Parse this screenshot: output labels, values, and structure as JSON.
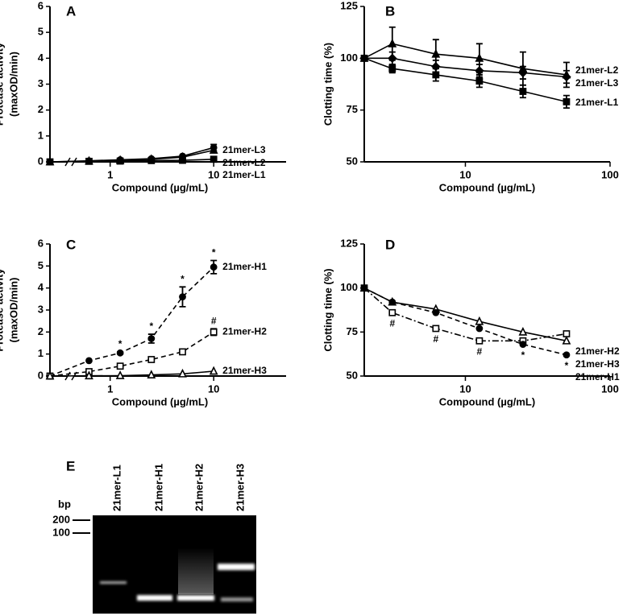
{
  "chart_data": [
    {
      "type": "line",
      "panel": "A",
      "ylabel": [
        "Protease activity",
        "(maxOD/min)"
      ],
      "xlabel": "Compound (µg/mL)",
      "x": [
        0,
        0.625,
        1.25,
        2.5,
        5,
        10
      ],
      "xlog": true,
      "axis_break": true,
      "xlim": [
        0.5,
        50
      ],
      "xticks": [
        1,
        10
      ],
      "ylim": [
        0,
        6
      ],
      "yticks": [
        0,
        1,
        2,
        3,
        4,
        5,
        6
      ],
      "annotation_position": "above",
      "series": [
        {
          "name": "21mer-L3",
          "color": "#000000",
          "marker": "circle",
          "filled": true,
          "dash": "solid",
          "values": [
            0,
            0.04,
            0.08,
            0.12,
            0.22,
            0.55
          ],
          "errors": [
            null,
            null,
            null,
            null,
            0.03,
            0.12
          ]
        },
        {
          "name": "21mer-L2",
          "color": "#000000",
          "marker": "triangle",
          "filled": true,
          "dash": "solid",
          "values": [
            0,
            0.03,
            0.06,
            0.1,
            0.18,
            0.45
          ],
          "errors": [
            null,
            null,
            null,
            null,
            0.03,
            0.1
          ]
        },
        {
          "name": "21mer-L1",
          "color": "#000000",
          "marker": "square",
          "filled": true,
          "dash": "solid",
          "values": [
            0,
            0.02,
            0.03,
            0.05,
            0.06,
            0.1
          ],
          "errors": [
            null,
            null,
            null,
            null,
            null,
            0.03
          ]
        }
      ]
    },
    {
      "type": "line",
      "panel": "B",
      "ylabel": [
        "Clotting time (%)"
      ],
      "xlabel": "Compound (µg/mL)",
      "x": [
        0,
        3.125,
        6.25,
        12.5,
        25,
        50
      ],
      "xlog": true,
      "axis_break": false,
      "xlim": [
        2,
        100
      ],
      "xticks": [
        10,
        100
      ],
      "ylim": [
        50,
        125
      ],
      "yticks": [
        50,
        75,
        100,
        125
      ],
      "annotation_position": "above",
      "series": [
        {
          "name": "21mer-L2",
          "color": "#000000",
          "marker": "triangle",
          "filled": true,
          "dash": "solid",
          "values": [
            100,
            107,
            102,
            100,
            95,
            92
          ],
          "errors": [
            null,
            8,
            7,
            7,
            8,
            6
          ]
        },
        {
          "name": "21mer-L3",
          "color": "#000000",
          "marker": "diamond",
          "filled": true,
          "dash": "solid",
          "values": [
            100,
            100,
            96,
            94,
            93,
            91
          ],
          "errors": [
            null,
            3,
            3,
            3,
            3,
            3
          ]
        },
        {
          "name": "21mer-L1",
          "color": "#000000",
          "marker": "square",
          "filled": true,
          "dash": "solid",
          "values": [
            100,
            95,
            92,
            89,
            84,
            79
          ],
          "errors": [
            null,
            2,
            3,
            3,
            3,
            3
          ]
        }
      ]
    },
    {
      "type": "line",
      "panel": "C",
      "ylabel": [
        "Protease activity",
        "(maxOD/min)"
      ],
      "xlabel": "Compound (µg/mL)",
      "x": [
        0,
        0.625,
        1.25,
        2.5,
        5,
        10
      ],
      "xlog": true,
      "axis_break": true,
      "xlim": [
        0.5,
        50
      ],
      "xticks": [
        1,
        10
      ],
      "ylim": [
        0,
        6
      ],
      "yticks": [
        0,
        1,
        2,
        3,
        4,
        5,
        6
      ],
      "annotation_position": "above",
      "series": [
        {
          "name": "21mer-H1",
          "color": "#000000",
          "marker": "circle",
          "filled": true,
          "dash": "dashed",
          "values": [
            0,
            0.7,
            1.05,
            1.7,
            3.6,
            4.95
          ],
          "errors": [
            null,
            null,
            0.05,
            0.2,
            0.45,
            0.3
          ],
          "point_labels": [
            null,
            null,
            "*",
            "*",
            "*",
            "*"
          ]
        },
        {
          "name": "21mer-H2",
          "color": "#000000",
          "marker": "square",
          "filled": false,
          "dash": "dashed",
          "values": [
            0,
            0.2,
            0.45,
            0.75,
            1.1,
            2.0
          ],
          "errors": [
            null,
            null,
            null,
            null,
            null,
            0.15
          ],
          "point_labels": [
            null,
            null,
            null,
            null,
            null,
            "#"
          ]
        },
        {
          "name": "21mer-H3",
          "color": "#000000",
          "marker": "triangle",
          "filled": false,
          "dash": "solid",
          "values": [
            0,
            0.01,
            0.02,
            0.05,
            0.1,
            0.22
          ],
          "errors": [
            null,
            null,
            null,
            null,
            null,
            null
          ]
        }
      ]
    },
    {
      "type": "line",
      "panel": "D",
      "ylabel": [
        "Clotting time (%)"
      ],
      "xlabel": "Compound (µg/mL)",
      "x": [
        0,
        3.125,
        6.25,
        12.5,
        25,
        50
      ],
      "xlog": true,
      "axis_break": false,
      "xlim": [
        2,
        100
      ],
      "xticks": [
        10,
        100
      ],
      "ylim": [
        50,
        125
      ],
      "yticks": [
        50,
        75,
        100,
        125
      ],
      "annotation_position": "below",
      "series": [
        {
          "name": "21mer-H2",
          "color": "#000000",
          "marker": "square",
          "filled": false,
          "dash": "dashdot",
          "values": [
            100,
            86,
            77,
            70,
            70,
            74
          ],
          "errors": [
            null,
            null,
            null,
            null,
            null,
            null
          ],
          "point_labels": [
            null,
            "#",
            "#",
            "#",
            null,
            null
          ]
        },
        {
          "name": "21mer-H3",
          "color": "#000000",
          "marker": "triangle",
          "filled": false,
          "dash": "solid",
          "values": [
            100,
            92,
            88,
            81,
            75,
            70
          ],
          "errors": [
            null,
            null,
            null,
            null,
            null,
            null
          ]
        },
        {
          "name": "21mer-H1",
          "color": "#000000",
          "marker": "circle",
          "filled": true,
          "dash": "dashed",
          "values": [
            100,
            92,
            86,
            77,
            68,
            62
          ],
          "errors": [
            null,
            null,
            null,
            null,
            null,
            null
          ],
          "point_labels": [
            null,
            null,
            null,
            null,
            "*",
            "*"
          ]
        }
      ]
    }
  ],
  "gel": {
    "panel": "E",
    "unit": "bp",
    "markers": [
      200,
      100
    ],
    "lanes": [
      "21mer-L1",
      "21mer-H1",
      "21mer-H2",
      "21mer-H3"
    ]
  }
}
